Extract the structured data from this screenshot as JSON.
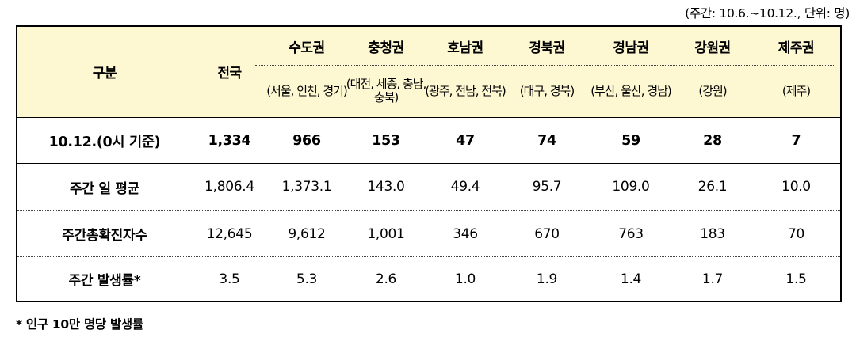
{
  "unit_note": "(주간: 10.6.~10.12., 단위: 명)",
  "header": {
    "category": "구분",
    "national": "전국",
    "regions": [
      {
        "name": "수도권",
        "sub": "(서울, 인천, 경기)"
      },
      {
        "name": "충청권",
        "sub": "(대전, 세종, 충남, 충북)"
      },
      {
        "name": "호남권",
        "sub": "(광주, 전남, 전북)"
      },
      {
        "name": "경북권",
        "sub": "(대구, 경북)"
      },
      {
        "name": "경남권",
        "sub": "(부산, 울산, 경남)"
      },
      {
        "name": "강원권",
        "sub": "(강원)"
      },
      {
        "name": "제주권",
        "sub": "(제주)"
      }
    ]
  },
  "rows": [
    {
      "label": "10.12.(0시 기준)",
      "values": [
        "1,334",
        "966",
        "153",
        "47",
        "74",
        "59",
        "28",
        "7"
      ]
    },
    {
      "label": "주간 일 평균",
      "values": [
        "1,806.4",
        "1,373.1",
        "143.0",
        "49.4",
        "95.7",
        "109.0",
        "26.1",
        "10.0"
      ]
    },
    {
      "label": "주간총확진자수",
      "values": [
        "12,645",
        "9,612",
        "1,001",
        "346",
        "670",
        "763",
        "183",
        "70"
      ]
    },
    {
      "label": "주간 발생률*",
      "values": [
        "3.5",
        "5.3",
        "2.6",
        "1.0",
        "1.9",
        "1.4",
        "1.7",
        "1.5"
      ]
    }
  ],
  "footnote": "* 인구 10만 명당 발생률"
}
